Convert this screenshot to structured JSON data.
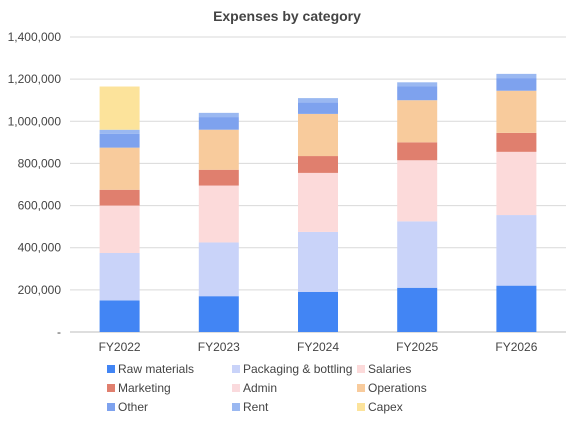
{
  "chart_data": {
    "type": "bar",
    "stacked": true,
    "title": "Expenses by category",
    "xlabel": "",
    "ylabel": "",
    "categories": [
      "FY2022",
      "FY2023",
      "FY2024",
      "FY2025",
      "FY2026"
    ],
    "ylim": [
      0,
      1400000
    ],
    "yticks": [
      {
        "value": 0,
        "label": "-"
      },
      {
        "value": 200000,
        "label": "200,000"
      },
      {
        "value": 400000,
        "label": "400,000"
      },
      {
        "value": 600000,
        "label": "600,000"
      },
      {
        "value": 800000,
        "label": "800,000"
      },
      {
        "value": 1000000,
        "label": "1,000,000"
      },
      {
        "value": 1200000,
        "label": "1,200,000"
      },
      {
        "value": 1400000,
        "label": "1,400,000"
      }
    ],
    "grid": true,
    "legend_position": "bottom",
    "series": [
      {
        "name": "Raw materials",
        "color": "#4285f4",
        "values": [
          150000,
          170000,
          190000,
          210000,
          220000
        ]
      },
      {
        "name": "Packaging & bottling",
        "color": "#c9d3f9",
        "values": [
          225000,
          255000,
          285000,
          315000,
          335000
        ]
      },
      {
        "name": "Salaries",
        "color": "#fcdada",
        "values": [
          225000,
          270000,
          280000,
          290000,
          300000
        ]
      },
      {
        "name": "Marketing",
        "color": "#e07f6e",
        "values": [
          75000,
          75000,
          80000,
          85000,
          90000
        ]
      },
      {
        "name": "Admin",
        "color": "#fadadd",
        "values": [
          0,
          0,
          0,
          0,
          0
        ]
      },
      {
        "name": "Operations",
        "color": "#f8cb9c",
        "values": [
          200000,
          190000,
          200000,
          200000,
          200000
        ]
      },
      {
        "name": "Other",
        "color": "#7ea2ee",
        "values": [
          65000,
          60000,
          55000,
          65000,
          60000
        ]
      },
      {
        "name": "Rent",
        "color": "#9ab8f1",
        "values": [
          20000,
          20000,
          20000,
          20000,
          20000
        ]
      },
      {
        "name": "Capex",
        "color": "#fce39b",
        "values": [
          205000,
          0,
          0,
          0,
          0
        ]
      }
    ]
  }
}
